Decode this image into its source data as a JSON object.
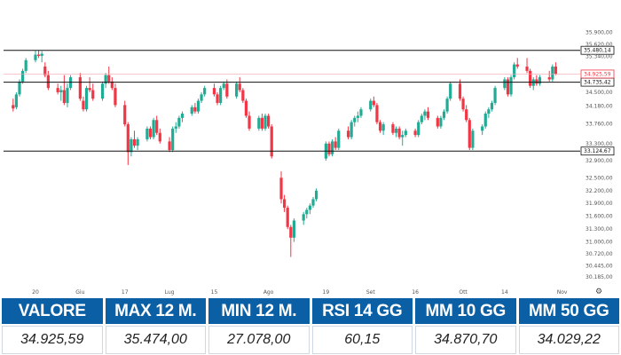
{
  "colors": {
    "up": "#22ab94",
    "down": "#f23645",
    "header_bg": "#0b5fa5",
    "level_line": "#111111"
  },
  "chart_data": {
    "type": "candlestick",
    "ylim": [
      30100,
      36200
    ],
    "y_ticks": [
      "35.900,00",
      "35.620,00",
      "35.340,00",
      "34.500,00",
      "34.180,00",
      "33.760,00",
      "33.300,00",
      "32.900,00",
      "32.500,00",
      "32.200,00",
      "31.900,00",
      "31.600,00",
      "31.300,00",
      "31.000,00",
      "30.720,00",
      "30.445,00",
      "30.185,00"
    ],
    "y_tick_values": [
      35900,
      35620,
      35340,
      34500,
      34180,
      33760,
      33300,
      32900,
      32500,
      32200,
      31900,
      31600,
      31300,
      31000,
      30720,
      30445,
      30185
    ],
    "x_ticks": [
      "20",
      "Giu",
      "17",
      "Lug",
      "15",
      "Ago",
      "19",
      "Set",
      "16",
      "Ott",
      "14",
      "Nov"
    ],
    "x_tick_dates": [
      "2024-05-20",
      "2024-06-03",
      "2024-06-17",
      "2024-07-01",
      "2024-07-15",
      "2024-08-01",
      "2024-08-19",
      "2024-09-02",
      "2024-09-16",
      "2024-10-01",
      "2024-10-14",
      "2024-11-01"
    ],
    "levels": [
      {
        "label": "35.480,14",
        "value": 35480.14
      },
      {
        "label": "34.735,42",
        "value": 34735.42
      },
      {
        "label": "33.124,67",
        "value": 33124.67
      }
    ],
    "last_price": {
      "label": "34.925,59",
      "value": 34925.59
    },
    "candles": [
      {
        "date": "2024-05-13",
        "o": 34200,
        "h": 34350,
        "l": 34050,
        "c": 34120
      },
      {
        "date": "2024-05-14",
        "o": 34150,
        "h": 34500,
        "l": 34100,
        "c": 34450
      },
      {
        "date": "2024-05-15",
        "o": 34450,
        "h": 34800,
        "l": 34400,
        "c": 34750
      },
      {
        "date": "2024-05-16",
        "o": 34750,
        "h": 35050,
        "l": 34700,
        "c": 35000
      },
      {
        "date": "2024-05-17",
        "o": 35000,
        "h": 35300,
        "l": 34950,
        "c": 35250
      },
      {
        "date": "2024-05-20",
        "o": 35250,
        "h": 35480,
        "l": 35200,
        "c": 35380
      },
      {
        "date": "2024-05-21",
        "o": 35380,
        "h": 35480,
        "l": 35300,
        "c": 35350
      },
      {
        "date": "2024-05-22",
        "o": 35350,
        "h": 35460,
        "l": 35200,
        "c": 35400
      },
      {
        "date": "2024-05-23",
        "o": 35100,
        "h": 35200,
        "l": 34850,
        "c": 34900
      },
      {
        "date": "2024-05-24",
        "o": 34900,
        "h": 35000,
        "l": 34550,
        "c": 34600
      },
      {
        "date": "2024-05-27",
        "o": 34600,
        "h": 34700,
        "l": 34450,
        "c": 34500
      },
      {
        "date": "2024-05-28",
        "o": 34500,
        "h": 34650,
        "l": 34300,
        "c": 34550
      },
      {
        "date": "2024-05-29",
        "o": 34550,
        "h": 34900,
        "l": 34200,
        "c": 34250
      },
      {
        "date": "2024-05-30",
        "o": 34250,
        "h": 34700,
        "l": 34150,
        "c": 34600
      },
      {
        "date": "2024-05-31",
        "o": 34600,
        "h": 34900,
        "l": 34550,
        "c": 34850
      },
      {
        "date": "2024-06-03",
        "o": 34850,
        "h": 34950,
        "l": 34300,
        "c": 34350
      },
      {
        "date": "2024-06-04",
        "o": 34300,
        "h": 34400,
        "l": 34050,
        "c": 34100
      },
      {
        "date": "2024-06-05",
        "o": 34100,
        "h": 34650,
        "l": 34050,
        "c": 34600
      },
      {
        "date": "2024-06-06",
        "o": 34600,
        "h": 34850,
        "l": 34500,
        "c": 34550
      },
      {
        "date": "2024-06-07",
        "o": 34550,
        "h": 34700,
        "l": 34300,
        "c": 34350
      },
      {
        "date": "2024-06-10",
        "o": 34350,
        "h": 34750,
        "l": 34300,
        "c": 34700
      },
      {
        "date": "2024-06-11",
        "o": 34700,
        "h": 34950,
        "l": 34600,
        "c": 34900
      },
      {
        "date": "2024-06-12",
        "o": 34900,
        "h": 35100,
        "l": 34700,
        "c": 34750
      },
      {
        "date": "2024-06-13",
        "o": 34750,
        "h": 34850,
        "l": 34550,
        "c": 34600
      },
      {
        "date": "2024-06-14",
        "o": 34600,
        "h": 34700,
        "l": 34150,
        "c": 34200
      },
      {
        "date": "2024-06-17",
        "o": 34200,
        "h": 34300,
        "l": 33700,
        "c": 33750
      },
      {
        "date": "2024-06-18",
        "o": 33750,
        "h": 33800,
        "l": 32800,
        "c": 33100
      },
      {
        "date": "2024-06-19",
        "o": 33100,
        "h": 33450,
        "l": 33000,
        "c": 33400
      },
      {
        "date": "2024-06-20",
        "o": 33400,
        "h": 33600,
        "l": 33200,
        "c": 33250
      },
      {
        "date": "2024-06-21",
        "o": 33250,
        "h": 33450,
        "l": 33150,
        "c": 33400
      },
      {
        "date": "2024-06-24",
        "o": 33400,
        "h": 33700,
        "l": 33350,
        "c": 33650
      },
      {
        "date": "2024-06-25",
        "o": 33650,
        "h": 33700,
        "l": 33400,
        "c": 33450
      },
      {
        "date": "2024-06-26",
        "o": 33450,
        "h": 33900,
        "l": 33400,
        "c": 33850
      },
      {
        "date": "2024-06-27",
        "o": 33850,
        "h": 33950,
        "l": 33500,
        "c": 33550
      },
      {
        "date": "2024-06-28",
        "o": 33550,
        "h": 33650,
        "l": 33300,
        "c": 33350
      },
      {
        "date": "2024-07-01",
        "o": 33350,
        "h": 33450,
        "l": 33100,
        "c": 33150
      },
      {
        "date": "2024-07-02",
        "o": 33150,
        "h": 33700,
        "l": 33100,
        "c": 33650
      },
      {
        "date": "2024-07-03",
        "o": 33650,
        "h": 33800,
        "l": 33550,
        "c": 33700
      },
      {
        "date": "2024-07-04",
        "o": 33700,
        "h": 33950,
        "l": 33650,
        "c": 33900
      },
      {
        "date": "2024-07-05",
        "o": 33900,
        "h": 34050,
        "l": 33800,
        "c": 34000
      },
      {
        "date": "2024-07-08",
        "o": 34000,
        "h": 34200,
        "l": 33950,
        "c": 34150
      },
      {
        "date": "2024-07-09",
        "o": 34150,
        "h": 34250,
        "l": 34000,
        "c": 34050
      },
      {
        "date": "2024-07-10",
        "o": 34050,
        "h": 34350,
        "l": 34000,
        "c": 34300
      },
      {
        "date": "2024-07-11",
        "o": 34300,
        "h": 34500,
        "l": 34250,
        "c": 34450
      },
      {
        "date": "2024-07-12",
        "o": 34450,
        "h": 34650,
        "l": 34400,
        "c": 34600
      },
      {
        "date": "2024-07-15",
        "o": 34600,
        "h": 34700,
        "l": 34400,
        "c": 34450
      },
      {
        "date": "2024-07-16",
        "o": 34450,
        "h": 34500,
        "l": 34200,
        "c": 34250
      },
      {
        "date": "2024-07-17",
        "o": 34250,
        "h": 34650,
        "l": 34200,
        "c": 34600
      },
      {
        "date": "2024-07-18",
        "o": 34600,
        "h": 34750,
        "l": 34550,
        "c": 34700
      },
      {
        "date": "2024-07-19",
        "o": 34700,
        "h": 34800,
        "l": 34350,
        "c": 34400
      },
      {
        "date": "2024-07-22",
        "o": 34400,
        "h": 34750,
        "l": 34350,
        "c": 34700
      },
      {
        "date": "2024-07-23",
        "o": 34700,
        "h": 34850,
        "l": 34500,
        "c": 34550
      },
      {
        "date": "2024-07-24",
        "o": 34550,
        "h": 34600,
        "l": 34250,
        "c": 34300
      },
      {
        "date": "2024-07-25",
        "o": 34300,
        "h": 34350,
        "l": 33900,
        "c": 33950
      },
      {
        "date": "2024-07-26",
        "o": 33950,
        "h": 34050,
        "l": 33600,
        "c": 33650
      },
      {
        "date": "2024-07-29",
        "o": 33650,
        "h": 33950,
        "l": 33600,
        "c": 33900
      },
      {
        "date": "2024-07-30",
        "o": 33900,
        "h": 34000,
        "l": 33600,
        "c": 33650
      },
      {
        "date": "2024-07-31",
        "o": 33650,
        "h": 34000,
        "l": 33600,
        "c": 33950
      },
      {
        "date": "2024-08-01",
        "o": 33950,
        "h": 34000,
        "l": 33650,
        "c": 33700
      },
      {
        "date": "2024-08-02",
        "o": 33700,
        "h": 33750,
        "l": 32950,
        "c": 33000
      },
      {
        "date": "2024-08-05",
        "o": 32500,
        "h": 32650,
        "l": 31900,
        "c": 32000
      },
      {
        "date": "2024-08-06",
        "o": 32000,
        "h": 32100,
        "l": 31700,
        "c": 31800
      },
      {
        "date": "2024-08-07",
        "o": 31800,
        "h": 31850,
        "l": 31300,
        "c": 31350
      },
      {
        "date": "2024-08-08",
        "o": 31350,
        "h": 31400,
        "l": 30650,
        "c": 31100
      },
      {
        "date": "2024-08-09",
        "o": 31100,
        "h": 31550,
        "l": 31000,
        "c": 31500
      },
      {
        "date": "2024-08-12",
        "o": 31500,
        "h": 31700,
        "l": 31400,
        "c": 31650
      },
      {
        "date": "2024-08-13",
        "o": 31650,
        "h": 31800,
        "l": 31550,
        "c": 31750
      },
      {
        "date": "2024-08-14",
        "o": 31750,
        "h": 31900,
        "l": 31650,
        "c": 31850
      },
      {
        "date": "2024-08-15",
        "o": 31850,
        "h": 32050,
        "l": 31800,
        "c": 32000
      },
      {
        "date": "2024-08-16",
        "o": 32000,
        "h": 32250,
        "l": 31950,
        "c": 32200
      },
      {
        "date": "2024-08-19",
        "o": 32950,
        "h": 33350,
        "l": 32900,
        "c": 33300
      },
      {
        "date": "2024-08-20",
        "o": 33300,
        "h": 33350,
        "l": 33000,
        "c": 33050
      },
      {
        "date": "2024-08-21",
        "o": 33050,
        "h": 33400,
        "l": 33000,
        "c": 33350
      },
      {
        "date": "2024-08-22",
        "o": 33350,
        "h": 33450,
        "l": 33150,
        "c": 33200
      },
      {
        "date": "2024-08-23",
        "o": 33200,
        "h": 33650,
        "l": 33150,
        "c": 33600
      },
      {
        "date": "2024-08-26",
        "o": 33600,
        "h": 33700,
        "l": 33400,
        "c": 33450
      },
      {
        "date": "2024-08-27",
        "o": 33450,
        "h": 33850,
        "l": 33400,
        "c": 33800
      },
      {
        "date": "2024-08-28",
        "o": 33800,
        "h": 33950,
        "l": 33700,
        "c": 33900
      },
      {
        "date": "2024-08-29",
        "o": 33900,
        "h": 34050,
        "l": 33800,
        "c": 33950
      },
      {
        "date": "2024-08-30",
        "o": 33950,
        "h": 34150,
        "l": 33900,
        "c": 34100
      },
      {
        "date": "2024-09-02",
        "o": 34100,
        "h": 34350,
        "l": 34050,
        "c": 34300
      },
      {
        "date": "2024-09-03",
        "o": 34300,
        "h": 34400,
        "l": 34150,
        "c": 34200
      },
      {
        "date": "2024-09-04",
        "o": 34200,
        "h": 34250,
        "l": 33750,
        "c": 33800
      },
      {
        "date": "2024-09-05",
        "o": 33800,
        "h": 33850,
        "l": 33550,
        "c": 33600
      },
      {
        "date": "2024-09-06",
        "o": 33600,
        "h": 33800,
        "l": 33500,
        "c": 33750
      },
      {
        "date": "2024-09-09",
        "o": 33750,
        "h": 33800,
        "l": 33500,
        "c": 33550
      },
      {
        "date": "2024-09-10",
        "o": 33550,
        "h": 33700,
        "l": 33450,
        "c": 33650
      },
      {
        "date": "2024-09-11",
        "o": 33650,
        "h": 33700,
        "l": 33400,
        "c": 33450
      },
      {
        "date": "2024-09-12",
        "o": 33450,
        "h": 33600,
        "l": 33250,
        "c": 33500
      },
      {
        "date": "2024-09-13",
        "o": 33500,
        "h": 33650,
        "l": 33450,
        "c": 33600
      },
      {
        "date": "2024-09-16",
        "o": 33600,
        "h": 33650,
        "l": 33450,
        "c": 33500
      },
      {
        "date": "2024-09-17",
        "o": 33500,
        "h": 33850,
        "l": 33450,
        "c": 33800
      },
      {
        "date": "2024-09-18",
        "o": 33800,
        "h": 34000,
        "l": 33750,
        "c": 33950
      },
      {
        "date": "2024-09-19",
        "o": 33950,
        "h": 34100,
        "l": 33850,
        "c": 34050
      },
      {
        "date": "2024-09-20",
        "o": 34050,
        "h": 34150,
        "l": 33850,
        "c": 33900
      },
      {
        "date": "2024-09-23",
        "o": 33900,
        "h": 33950,
        "l": 33650,
        "c": 33700
      },
      {
        "date": "2024-09-24",
        "o": 33700,
        "h": 33950,
        "l": 33650,
        "c": 33900
      },
      {
        "date": "2024-09-25",
        "o": 33900,
        "h": 34100,
        "l": 33850,
        "c": 34050
      },
      {
        "date": "2024-09-26",
        "o": 34050,
        "h": 34400,
        "l": 34000,
        "c": 34350
      },
      {
        "date": "2024-09-27",
        "o": 34350,
        "h": 34750,
        "l": 34300,
        "c": 34700
      },
      {
        "date": "2024-09-30",
        "o": 34700,
        "h": 34800,
        "l": 34300,
        "c": 34350
      },
      {
        "date": "2024-10-01",
        "o": 34350,
        "h": 34400,
        "l": 34050,
        "c": 34100
      },
      {
        "date": "2024-10-02",
        "o": 34100,
        "h": 34200,
        "l": 33800,
        "c": 33850
      },
      {
        "date": "2024-10-03",
        "o": 33850,
        "h": 33900,
        "l": 33150,
        "c": 33200
      },
      {
        "date": "2024-10-04",
        "o": 33200,
        "h": 33650,
        "l": 33150,
        "c": 33600
      },
      {
        "date": "2024-10-07",
        "o": 33600,
        "h": 33750,
        "l": 33500,
        "c": 33700
      },
      {
        "date": "2024-10-08",
        "o": 33700,
        "h": 34050,
        "l": 33650,
        "c": 34000
      },
      {
        "date": "2024-10-09",
        "o": 34000,
        "h": 34150,
        "l": 33900,
        "c": 34100
      },
      {
        "date": "2024-10-10",
        "o": 34100,
        "h": 34300,
        "l": 34050,
        "c": 34250
      },
      {
        "date": "2024-10-11",
        "o": 34250,
        "h": 34650,
        "l": 34200,
        "c": 34600
      },
      {
        "date": "2024-10-14",
        "o": 34600,
        "h": 34850,
        "l": 34550,
        "c": 34800
      },
      {
        "date": "2024-10-15",
        "o": 34800,
        "h": 34850,
        "l": 34400,
        "c": 34450
      },
      {
        "date": "2024-10-16",
        "o": 34450,
        "h": 34900,
        "l": 34400,
        "c": 34850
      },
      {
        "date": "2024-10-17",
        "o": 34850,
        "h": 35200,
        "l": 34800,
        "c": 35150
      },
      {
        "date": "2024-10-18",
        "o": 35150,
        "h": 35300,
        "l": 35050,
        "c": 35100
      },
      {
        "date": "2024-10-21",
        "o": 35100,
        "h": 35300,
        "l": 34950,
        "c": 35000
      },
      {
        "date": "2024-10-22",
        "o": 35000,
        "h": 35050,
        "l": 34600,
        "c": 34650
      },
      {
        "date": "2024-10-23",
        "o": 34650,
        "h": 34850,
        "l": 34550,
        "c": 34800
      },
      {
        "date": "2024-10-24",
        "o": 34800,
        "h": 34900,
        "l": 34650,
        "c": 34700
      },
      {
        "date": "2024-10-25",
        "o": 34700,
        "h": 34900,
        "l": 34650,
        "c": 34850
      },
      {
        "date": "2024-10-28",
        "o": 34850,
        "h": 35000,
        "l": 34750,
        "c": 34800
      },
      {
        "date": "2024-10-29",
        "o": 34800,
        "h": 35150,
        "l": 34750,
        "c": 35100
      },
      {
        "date": "2024-10-30",
        "o": 35100,
        "h": 35200,
        "l": 34900,
        "c": 34930
      }
    ]
  },
  "stats": [
    {
      "label": "VALORE",
      "value": "34.925,59"
    },
    {
      "label": "MAX 12 M.",
      "value": "35.474,00"
    },
    {
      "label": "MIN 12 M.",
      "value": "27.078,00"
    },
    {
      "label": "RSI 14 GG",
      "value": "60,15"
    },
    {
      "label": "MM 10 GG",
      "value": "34.870,70"
    },
    {
      "label": "MM 50 GG",
      "value": "34.029,22"
    }
  ]
}
